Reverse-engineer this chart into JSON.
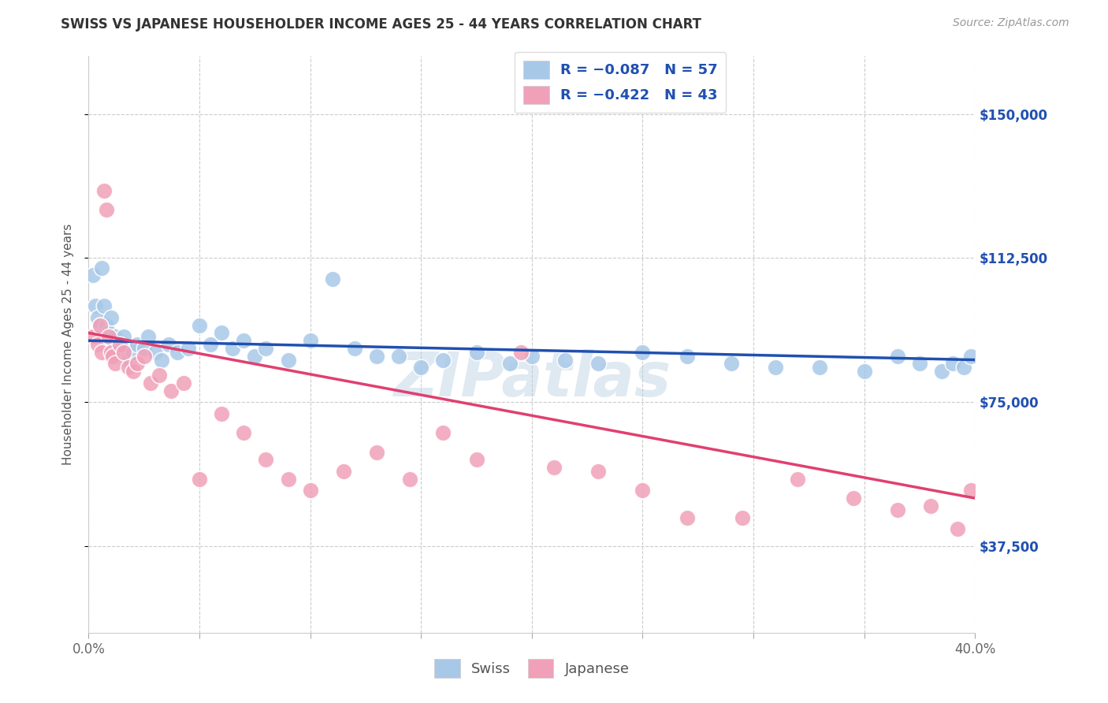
{
  "title": "SWISS VS JAPANESE HOUSEHOLDER INCOME AGES 25 - 44 YEARS CORRELATION CHART",
  "source": "Source: ZipAtlas.com",
  "ylabel": "Householder Income Ages 25 - 44 years",
  "x_min": 0.0,
  "x_max": 0.4,
  "y_min": 15000,
  "y_max": 165000,
  "x_ticks": [
    0.0,
    0.05,
    0.1,
    0.15,
    0.2,
    0.25,
    0.3,
    0.35,
    0.4
  ],
  "y_ticks_right": [
    37500,
    75000,
    112500,
    150000
  ],
  "y_tick_labels_right": [
    "$37,500",
    "$75,000",
    "$112,500",
    "$150,000"
  ],
  "swiss_color": "#a8c8e8",
  "japanese_color": "#f0a0b8",
  "swiss_line_color": "#2050b0",
  "japanese_line_color": "#e04070",
  "background_color": "#ffffff",
  "grid_color": "#cccccc",
  "watermark": "ZIPatlas",
  "swiss_x": [
    0.002,
    0.003,
    0.004,
    0.005,
    0.006,
    0.007,
    0.008,
    0.009,
    0.01,
    0.011,
    0.012,
    0.013,
    0.015,
    0.016,
    0.017,
    0.018,
    0.02,
    0.022,
    0.025,
    0.027,
    0.03,
    0.033,
    0.036,
    0.04,
    0.045,
    0.05,
    0.055,
    0.06,
    0.065,
    0.07,
    0.075,
    0.08,
    0.09,
    0.1,
    0.11,
    0.12,
    0.13,
    0.14,
    0.15,
    0.16,
    0.175,
    0.19,
    0.2,
    0.215,
    0.23,
    0.25,
    0.27,
    0.29,
    0.31,
    0.33,
    0.35,
    0.365,
    0.375,
    0.385,
    0.39,
    0.395,
    0.398
  ],
  "swiss_y": [
    108000,
    100000,
    97000,
    95000,
    110000,
    100000,
    95000,
    93000,
    97000,
    90000,
    92000,
    88000,
    89000,
    92000,
    87000,
    86000,
    88000,
    90000,
    89000,
    92000,
    88000,
    86000,
    90000,
    88000,
    89000,
    95000,
    90000,
    93000,
    89000,
    91000,
    87000,
    89000,
    86000,
    91000,
    107000,
    89000,
    87000,
    87000,
    84000,
    86000,
    88000,
    85000,
    87000,
    86000,
    85000,
    88000,
    87000,
    85000,
    84000,
    84000,
    83000,
    87000,
    85000,
    83000,
    85000,
    84000,
    87000
  ],
  "japanese_x": [
    0.002,
    0.004,
    0.005,
    0.006,
    0.007,
    0.008,
    0.009,
    0.01,
    0.011,
    0.012,
    0.014,
    0.016,
    0.018,
    0.02,
    0.022,
    0.025,
    0.028,
    0.032,
    0.037,
    0.043,
    0.05,
    0.06,
    0.07,
    0.08,
    0.09,
    0.1,
    0.115,
    0.13,
    0.145,
    0.16,
    0.175,
    0.195,
    0.21,
    0.23,
    0.25,
    0.27,
    0.295,
    0.32,
    0.345,
    0.365,
    0.38,
    0.392,
    0.398
  ],
  "japanese_y": [
    92000,
    90000,
    95000,
    88000,
    130000,
    125000,
    92000,
    88000,
    87000,
    85000,
    90000,
    88000,
    84000,
    83000,
    85000,
    87000,
    80000,
    82000,
    78000,
    80000,
    55000,
    72000,
    67000,
    60000,
    55000,
    52000,
    57000,
    62000,
    55000,
    67000,
    60000,
    88000,
    58000,
    57000,
    52000,
    45000,
    45000,
    55000,
    50000,
    47000,
    48000,
    42000,
    52000
  ]
}
